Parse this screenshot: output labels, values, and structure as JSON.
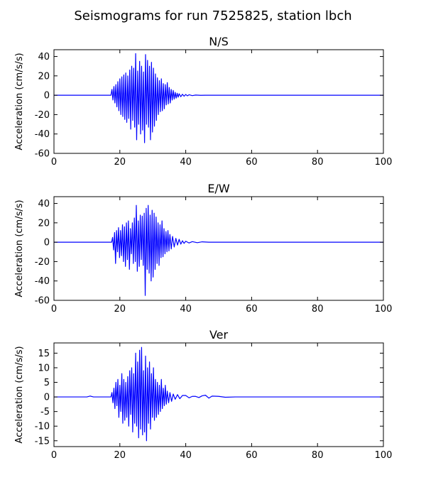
{
  "figure": {
    "title": "Seismograms for run 7525825, station lbch"
  },
  "style": {
    "line_color": "#0000ff",
    "axes_color": "#000000",
    "background": "#ffffff"
  },
  "chart_data": [
    {
      "type": "line",
      "title": "N/S",
      "xlabel": "",
      "ylabel": "Acceleration (cm/s/s)",
      "xlim": [
        0,
        100
      ],
      "ylim": [
        -60,
        47
      ],
      "xticks": [
        0,
        20,
        40,
        60,
        80,
        100
      ],
      "yticks": [
        -60,
        -40,
        -20,
        0,
        20,
        40
      ],
      "grid": false,
      "series": [
        {
          "x": [
            0,
            17.3,
            17.6,
            17.9,
            18.2,
            18.5,
            18.8,
            19.1,
            19.4,
            19.7,
            20.0,
            20.3,
            20.6,
            20.9,
            21.2,
            21.5,
            21.8,
            22.1,
            22.4,
            22.7,
            23.0,
            23.3,
            23.6,
            23.9,
            24.2,
            24.5,
            24.8,
            25.1,
            25.4,
            25.7,
            26.0,
            26.3,
            26.6,
            26.9,
            27.2,
            27.5,
            27.8,
            28.1,
            28.4,
            28.7,
            29.0,
            29.3,
            29.6,
            29.9,
            30.2,
            30.5,
            30.8,
            31.1,
            31.4,
            31.7,
            32.0,
            32.3,
            32.6,
            32.9,
            33.2,
            33.5,
            33.8,
            34.1,
            34.4,
            34.7,
            35.0,
            35.3,
            35.6,
            35.9,
            36.2,
            36.5,
            36.8,
            37.1,
            37.4,
            37.7,
            38.0,
            38.5,
            39.0,
            39.5,
            40.0,
            40.5,
            41.0,
            42.0,
            43.0,
            44.5,
            46.0,
            100
          ],
          "y": [
            0,
            0,
            6,
            -5,
            9,
            -8,
            11,
            -12,
            14,
            -16,
            17,
            -20,
            19,
            -22,
            21,
            -25,
            23,
            -28,
            20,
            -24,
            26,
            -35,
            30,
            -26,
            28,
            -33,
            43,
            -46,
            25,
            -30,
            35,
            -40,
            30,
            -36,
            24,
            -49,
            42,
            -30,
            36,
            -33,
            30,
            -46,
            34,
            -38,
            28,
            -32,
            22,
            -26,
            18,
            -20,
            15,
            -17,
            17,
            -16,
            12,
            -14,
            11,
            -10,
            13,
            -9,
            8,
            -8,
            6,
            -5,
            5,
            -4,
            3,
            -3,
            2,
            -2,
            1.5,
            -1.5,
            1,
            -1,
            0.8,
            -0.6,
            0.5,
            -0.4,
            0.2,
            -0.1,
            0,
            0
          ]
        }
      ]
    },
    {
      "type": "line",
      "title": "E/W",
      "xlabel": "",
      "ylabel": "Acceleration (cm/s/s)",
      "xlim": [
        0,
        100
      ],
      "ylim": [
        -60,
        47
      ],
      "xticks": [
        0,
        20,
        40,
        60,
        80,
        100
      ],
      "yticks": [
        -60,
        -40,
        -20,
        0,
        20,
        40
      ],
      "grid": false,
      "series": [
        {
          "x": [
            0,
            17.5,
            17.8,
            18.1,
            18.4,
            18.7,
            19.0,
            19.3,
            19.6,
            19.9,
            20.2,
            20.5,
            20.8,
            21.1,
            21.4,
            21.7,
            22.0,
            22.3,
            22.6,
            22.9,
            23.2,
            23.5,
            23.8,
            24.1,
            24.4,
            24.7,
            25.0,
            25.3,
            25.6,
            25.9,
            26.2,
            26.5,
            26.8,
            27.1,
            27.4,
            27.7,
            28.0,
            28.3,
            28.6,
            28.9,
            29.2,
            29.5,
            29.8,
            30.1,
            30.4,
            30.7,
            31.0,
            31.3,
            31.6,
            31.9,
            32.2,
            32.5,
            32.8,
            33.1,
            33.4,
            33.7,
            34.0,
            34.3,
            34.6,
            34.9,
            35.2,
            35.6,
            36.0,
            36.5,
            37.0,
            37.5,
            38.0,
            38.5,
            39.0,
            39.5,
            40.0,
            41.0,
            42.0,
            43.5,
            45.0,
            47.0,
            100
          ],
          "y": [
            0,
            0,
            5,
            -8,
            10,
            -22,
            12,
            -10,
            15,
            -16,
            12,
            -14,
            18,
            -20,
            16,
            -25,
            20,
            -18,
            22,
            -28,
            14,
            -12,
            20,
            -22,
            25,
            -20,
            38,
            -30,
            22,
            -25,
            28,
            -18,
            27,
            -24,
            30,
            -55,
            35,
            -28,
            38,
            -32,
            28,
            -40,
            33,
            -36,
            30,
            -28,
            26,
            -22,
            20,
            -24,
            18,
            -16,
            22,
            -15,
            14,
            -12,
            11,
            -10,
            12,
            -9,
            8,
            -7,
            6,
            -5,
            4,
            -3,
            3,
            -2,
            1.5,
            -1.2,
            1,
            -0.8,
            0.6,
            -0.5,
            0.4,
            0,
            0
          ]
        }
      ]
    },
    {
      "type": "line",
      "title": "Ver",
      "xlabel": "",
      "ylabel": "Acceleration (cm/s/s)",
      "xlim": [
        0,
        100
      ],
      "ylim": [
        -17,
        18.5
      ],
      "xticks": [
        0,
        20,
        40,
        60,
        80,
        100
      ],
      "yticks": [
        -15,
        -10,
        -5,
        0,
        5,
        10,
        15
      ],
      "grid": false,
      "series": [
        {
          "x": [
            0,
            10.0,
            11.0,
            12.0,
            17.3,
            17.6,
            17.9,
            18.2,
            18.5,
            18.8,
            19.1,
            19.4,
            19.7,
            20.0,
            20.3,
            20.6,
            20.9,
            21.2,
            21.5,
            21.8,
            22.1,
            22.4,
            22.7,
            23.0,
            23.3,
            23.6,
            23.9,
            24.2,
            24.5,
            24.8,
            25.1,
            25.4,
            25.7,
            26.0,
            26.3,
            26.6,
            26.9,
            27.2,
            27.5,
            27.8,
            28.1,
            28.4,
            28.7,
            29.0,
            29.3,
            29.6,
            29.9,
            30.2,
            30.5,
            30.8,
            31.1,
            31.4,
            31.7,
            32.0,
            32.3,
            32.6,
            32.9,
            33.2,
            33.5,
            33.8,
            34.1,
            34.4,
            34.8,
            35.2,
            35.7,
            36.2,
            36.8,
            37.5,
            38.2,
            39.0,
            40.0,
            41.0,
            42.0,
            43.0,
            44.0,
            45.0,
            46.0,
            47.0,
            48.0,
            50.0,
            52.0,
            55.0,
            100
          ],
          "y": [
            0,
            0,
            0.3,
            0,
            0,
            1.5,
            -2,
            3,
            -4,
            5,
            -3,
            6,
            -7,
            4,
            -5,
            8,
            -9,
            6,
            -8,
            5,
            -7,
            7,
            -10,
            9,
            -6,
            10,
            -12,
            8,
            -9,
            15,
            -10,
            12,
            -14,
            16,
            -11,
            17,
            -13,
            9,
            -12,
            14,
            -15,
            10,
            -9,
            12,
            -11,
            8,
            -7,
            10,
            -8,
            6,
            -7,
            5,
            -6,
            4,
            -5,
            6,
            -4,
            3,
            -3,
            4,
            -2.5,
            2,
            -2,
            1.5,
            -1.5,
            1,
            -0.8,
            0.8,
            -0.6,
            0.5,
            0.5,
            -0.3,
            0.2,
            0.2,
            -0.2,
            0.4,
            0.6,
            -0.4,
            0.3,
            0.2,
            -0.1,
            0,
            0
          ]
        }
      ]
    }
  ]
}
